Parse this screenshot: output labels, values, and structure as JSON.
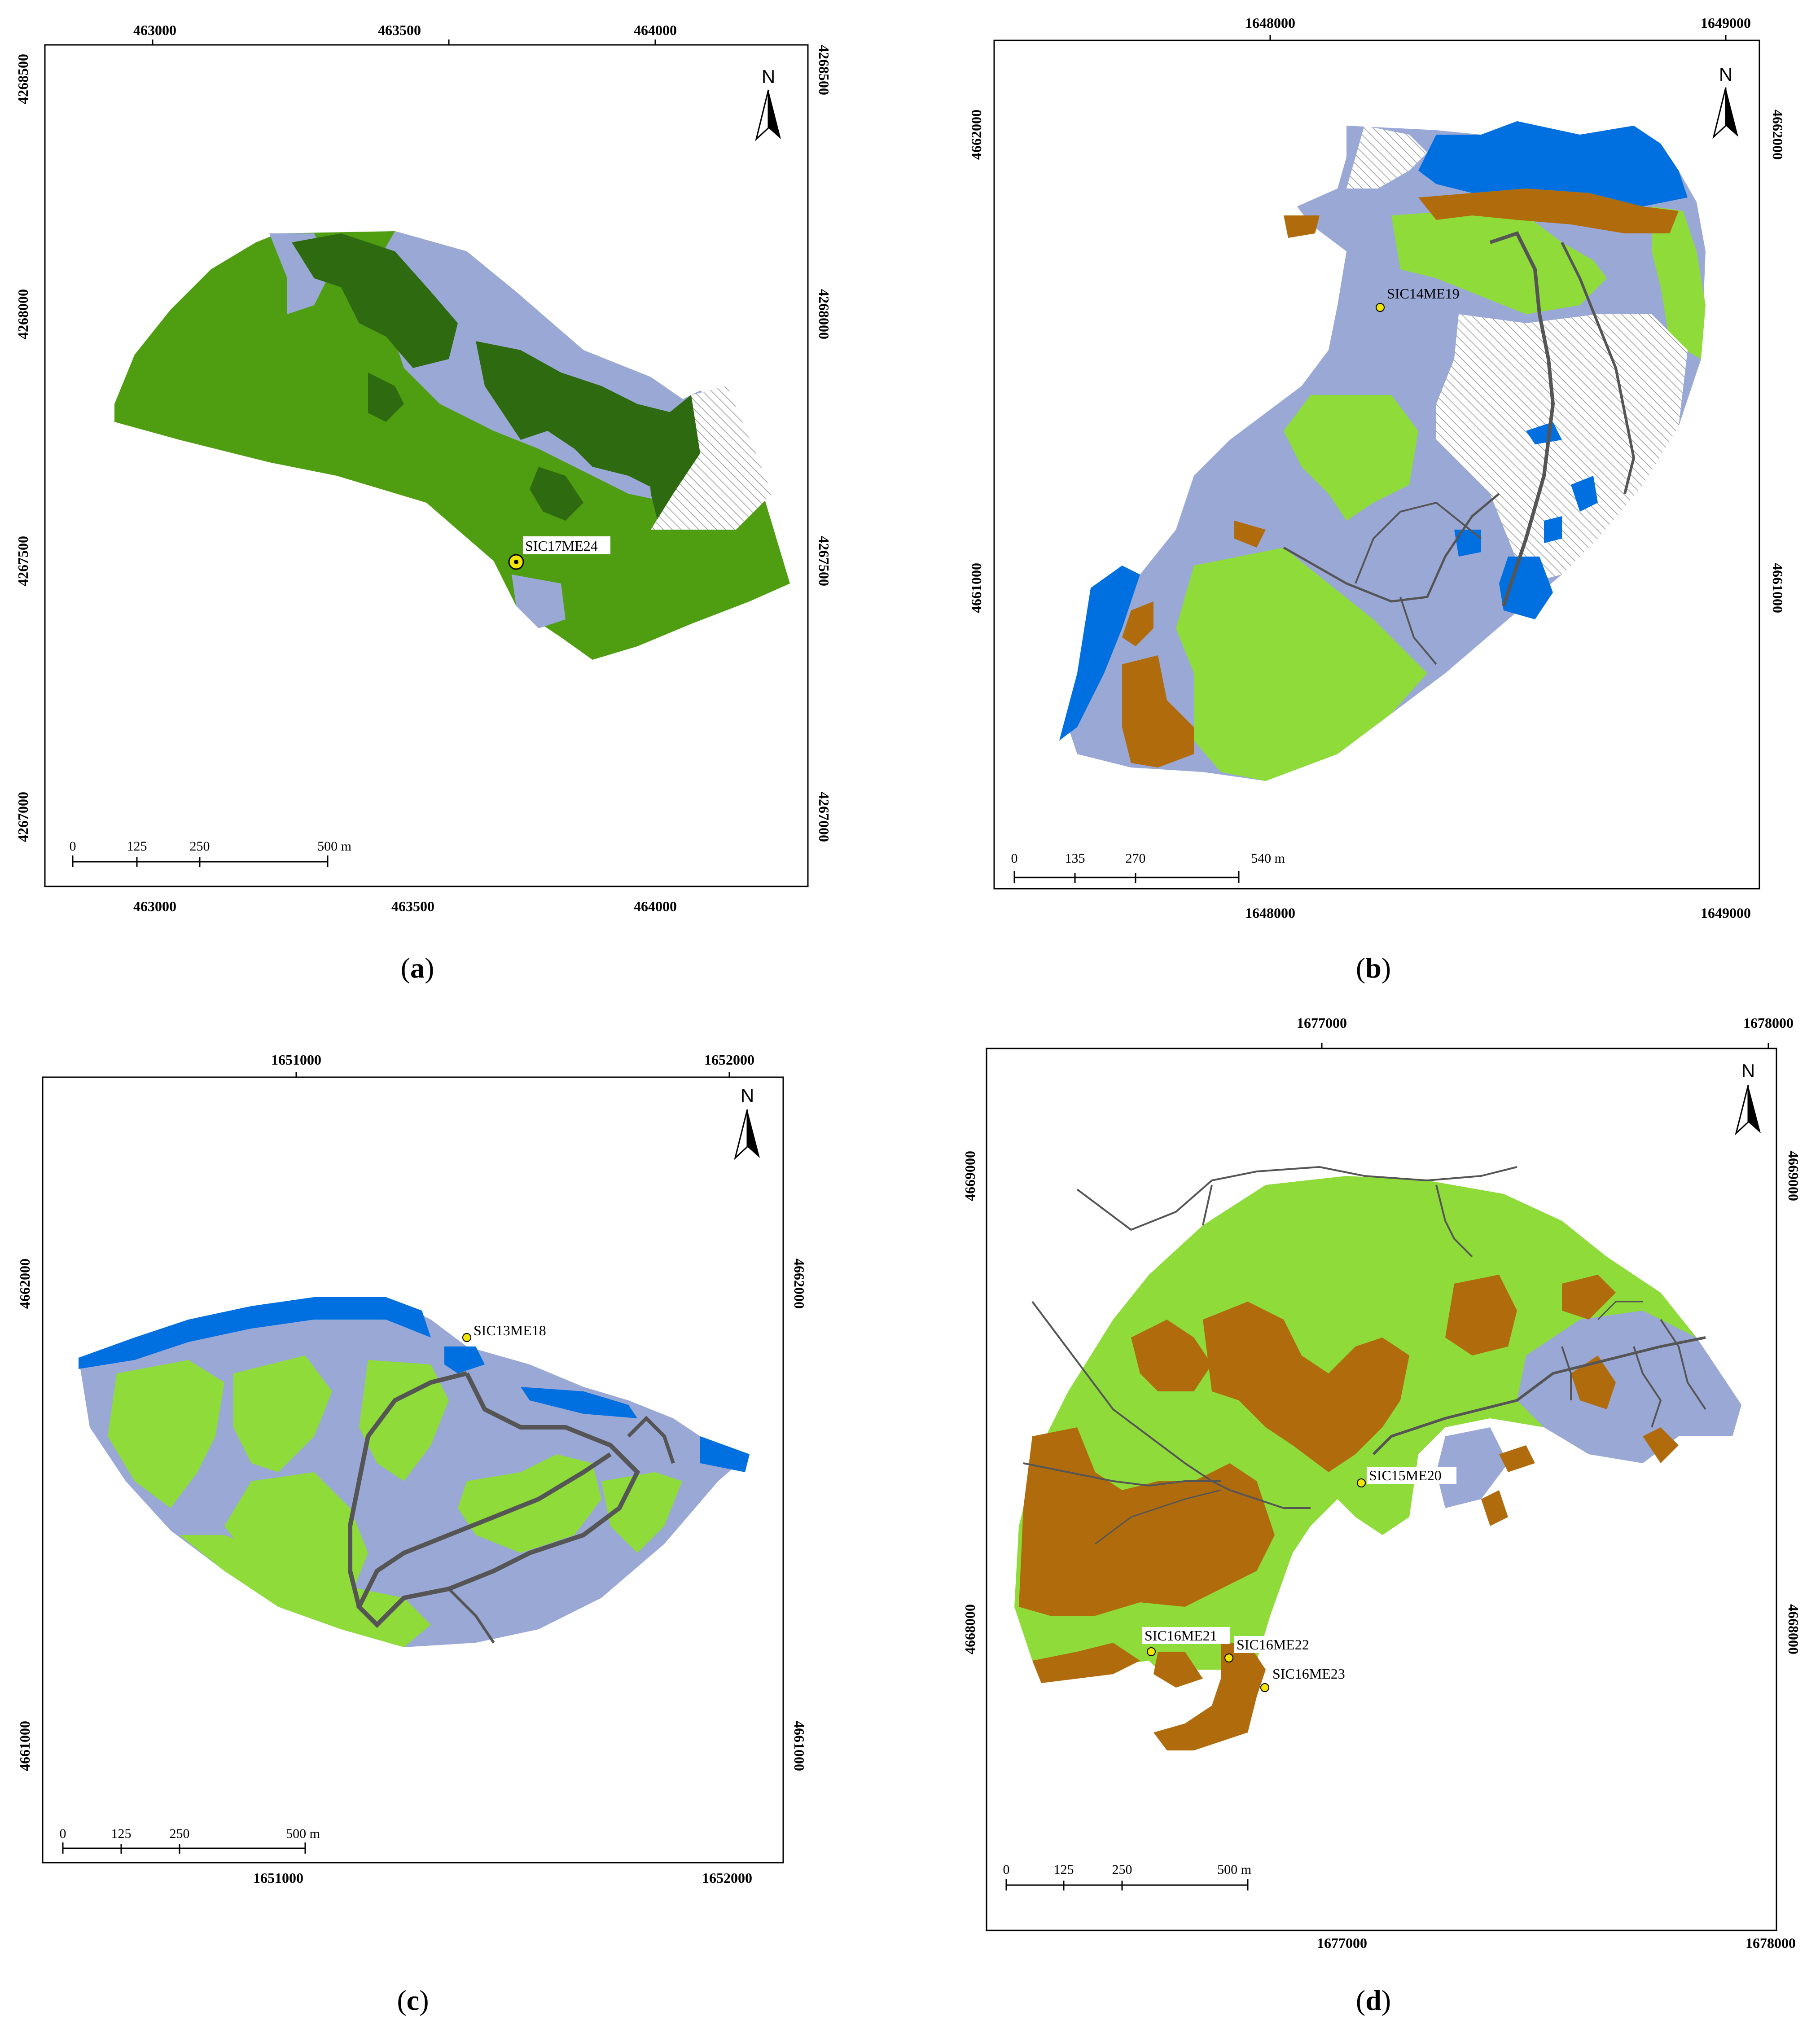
{
  "colors": {
    "forest_dark": "#2e6b10",
    "forest": "#4f9e12",
    "grass": "#8fdb3a",
    "lavender": "#9aa8d6",
    "water": "#0070e0",
    "brown": "#b06c0c",
    "hatch": "#9a9a9a",
    "road": "#555555",
    "site_marker": "#f2e600"
  },
  "icons": {
    "north_arrow": "north-arrow-icon",
    "site": "site-marker-icon"
  },
  "panels": {
    "a": {
      "caption_letter": "a",
      "top_ticks": [
        "463000",
        "463500",
        "464000"
      ],
      "bottom_ticks": [
        "463000",
        "463500",
        "464000"
      ],
      "left_ticks": [
        "4268500",
        "4268000",
        "4267500",
        "4267000"
      ],
      "right_ticks": [
        "4268500",
        "4268000",
        "4267500",
        "4267000"
      ],
      "north": "N",
      "scale": {
        "labels": [
          "0",
          "125",
          "250",
          "500 m"
        ]
      },
      "sites": [
        "SIC17ME24"
      ]
    },
    "b": {
      "caption_letter": "b",
      "top_ticks": [
        "1648000",
        "1649000"
      ],
      "bottom_ticks": [
        "1648000",
        "1649000"
      ],
      "left_ticks": [
        "4662000",
        "4661000"
      ],
      "right_ticks": [
        "4662000",
        "4661000"
      ],
      "north": "N",
      "scale": {
        "labels": [
          "0",
          "135",
          "270",
          "540 m"
        ]
      },
      "sites": [
        "SIC14ME19"
      ]
    },
    "c": {
      "caption_letter": "c",
      "top_ticks": [
        "1651000",
        "1652000"
      ],
      "bottom_ticks": [
        "1651000",
        "1652000"
      ],
      "left_ticks": [
        "4662000",
        "4661000"
      ],
      "right_ticks": [
        "4662000",
        "4661000"
      ],
      "north": "N",
      "scale": {
        "labels": [
          "0",
          "125",
          "250",
          "500 m"
        ]
      },
      "sites": [
        "SIC13ME18"
      ]
    },
    "d": {
      "caption_letter": "d",
      "top_ticks": [
        "1677000",
        "1678000"
      ],
      "bottom_ticks": [
        "1677000",
        "1678000"
      ],
      "left_ticks": [
        "4669000",
        "4668000"
      ],
      "right_ticks": [
        "4669000",
        "4668000"
      ],
      "north": "N",
      "scale": {
        "labels": [
          "0",
          "125",
          "250",
          "500 m"
        ]
      },
      "sites": [
        "SIC15ME20",
        "SIC16ME21",
        "SIC16ME22",
        "SIC16ME23"
      ]
    }
  }
}
